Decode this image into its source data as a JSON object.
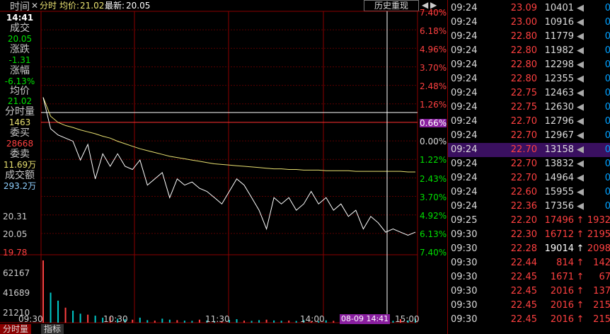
{
  "header": {
    "fenshi_label": "分时",
    "avg_label": "均价:",
    "avg_value": "21.02",
    "latest_label": "最新:",
    "latest_value": "20.05",
    "history_button": "历史重现"
  },
  "info": {
    "time_label": "时间",
    "time_value": "14:41",
    "deal_label": "成交",
    "deal_value": "20.05",
    "change_label": "涨跌",
    "change_value": "-1.31",
    "pct_label": "涨幅",
    "pct_value": "-6.13%",
    "avg_label": "均价",
    "avg_value": "21.02",
    "vol_label": "分时量",
    "vol_value": "1463",
    "bid_label": "委买",
    "bid_value": "28668",
    "ask_label": "委卖",
    "ask_value": "11.69万",
    "amount_label": "成交额",
    "amount_value": "293.2万"
  },
  "price_axis": [
    "20.31",
    "20.05",
    "19.78"
  ],
  "volume_axis": [
    "62167",
    "41689",
    "21210"
  ],
  "pct_axis": [
    "7.40%",
    "6.18%",
    "4.96%",
    "3.70%",
    "2.48%",
    "1.26%",
    "0.66%",
    "0.00%",
    "1.22%",
    "2.43%",
    "3.70%",
    "4.92%",
    "6.13%",
    "7.40%"
  ],
  "time_axis": [
    "09:30",
    "10:30",
    "11:30",
    "14:00",
    "15:00"
  ],
  "cursor_time": "08-09 14:41",
  "tabs": [
    "分时量",
    "指标"
  ],
  "colors": {
    "up": "#ff4040",
    "down": "#00e000",
    "price_line": "#ffffff",
    "avg_line": "#e8e070",
    "cursor": "#ffffff",
    "highlight": "#3a1060"
  },
  "trades": [
    {
      "time": "09:24",
      "price": "23.09",
      "vol": "10401",
      "arrow": "◀",
      "cnt": "0"
    },
    {
      "time": "09:24",
      "price": "23.00",
      "vol": "10916",
      "arrow": "◀",
      "cnt": "0"
    },
    {
      "time": "09:24",
      "price": "22.80",
      "vol": "11779",
      "arrow": "◀",
      "cnt": "0"
    },
    {
      "time": "09:24",
      "price": "22.80",
      "vol": "11982",
      "arrow": "◀",
      "cnt": "0"
    },
    {
      "time": "09:24",
      "price": "22.80",
      "vol": "12298",
      "arrow": "◀",
      "cnt": "0"
    },
    {
      "time": "09:24",
      "price": "22.80",
      "vol": "12355",
      "arrow": "◀",
      "cnt": "0"
    },
    {
      "time": "09:24",
      "price": "22.75",
      "vol": "12463",
      "arrow": "◀",
      "cnt": "0"
    },
    {
      "time": "09:24",
      "price": "22.75",
      "vol": "12630",
      "arrow": "◀",
      "cnt": "0"
    },
    {
      "time": "09:24",
      "price": "22.70",
      "vol": "12796",
      "arrow": "◀",
      "cnt": "0"
    },
    {
      "time": "09:24",
      "price": "22.70",
      "vol": "12967",
      "arrow": "◀",
      "cnt": "0"
    },
    {
      "time": "09:24",
      "price": "22.70",
      "vol": "13158",
      "arrow": "◀",
      "cnt": "0",
      "selected": true
    },
    {
      "time": "09:24",
      "price": "22.70",
      "vol": "13832",
      "arrow": "◀",
      "cnt": "0"
    },
    {
      "time": "09:24",
      "price": "22.70",
      "vol": "14964",
      "arrow": "◀",
      "cnt": "0"
    },
    {
      "time": "09:24",
      "price": "22.60",
      "vol": "15955",
      "arrow": "◀",
      "cnt": "0"
    },
    {
      "time": "09:24",
      "price": "22.36",
      "vol": "17356",
      "arrow": "◀",
      "cnt": "0"
    },
    {
      "time": "09:25",
      "price": "22.20",
      "vol": "17496",
      "arrow": "↑",
      "cnt": "1932",
      "dir": "up"
    },
    {
      "time": "09:30",
      "price": "22.30",
      "vol": "16712",
      "arrow": "↑",
      "cnt": "2195",
      "dir": "up"
    },
    {
      "time": "09:30",
      "price": "22.28",
      "vol": "19014",
      "arrow": "↑",
      "cnt": "2098",
      "dir": "up",
      "white": true
    },
    {
      "time": "09:30",
      "price": "22.44",
      "vol": "814",
      "arrow": "↑",
      "cnt": "142",
      "dir": "up"
    },
    {
      "time": "09:30",
      "price": "22.45",
      "vol": "1671",
      "arrow": "↑",
      "cnt": "67",
      "dir": "up"
    },
    {
      "time": "09:30",
      "price": "22.45",
      "vol": "2016",
      "arrow": "↑",
      "cnt": "137",
      "dir": "up"
    },
    {
      "time": "09:30",
      "price": "22.45",
      "vol": "2016",
      "arrow": "↑",
      "cnt": "215",
      "dir": "up"
    },
    {
      "time": "09:30",
      "price": "22.45",
      "vol": "2016",
      "arrow": "↑",
      "cnt": "215",
      "dir": "up"
    }
  ],
  "chart_data": {
    "type": "line",
    "price": [
      22.2,
      21.7,
      21.6,
      21.55,
      21.5,
      21.2,
      21.45,
      20.9,
      21.3,
      21.1,
      21.3,
      21.1,
      21.05,
      21.2,
      20.8,
      20.9,
      21.0,
      20.6,
      20.9,
      20.8,
      20.85,
      20.75,
      20.7,
      20.6,
      20.5,
      20.7,
      20.9,
      20.8,
      20.6,
      20.4,
      20.1,
      20.6,
      20.5,
      20.6,
      20.4,
      20.5,
      20.7,
      20.5,
      20.6,
      20.4,
      20.5,
      20.3,
      20.4,
      20.1,
      20.3,
      20.2,
      20.05,
      20.1,
      20.05,
      20.0,
      20.05
    ],
    "avg": [
      22.2,
      21.9,
      21.8,
      21.75,
      21.72,
      21.68,
      21.65,
      21.62,
      21.58,
      21.55,
      21.5,
      21.46,
      21.42,
      21.38,
      21.35,
      21.32,
      21.29,
      21.26,
      21.24,
      21.22,
      21.2,
      21.18,
      21.16,
      21.14,
      21.13,
      21.12,
      21.11,
      21.1,
      21.09,
      21.08,
      21.07,
      21.06,
      21.06,
      21.05,
      21.05,
      21.04,
      21.04,
      21.04,
      21.03,
      21.03,
      21.03,
      21.03,
      21.02,
      21.02,
      21.02,
      21.02,
      21.02,
      21.02,
      21.02,
      21.01,
      21.01
    ],
    "prev_close": 21.36,
    "volume": [
      62167,
      30000,
      22000,
      15000,
      12000,
      9000,
      8000,
      7000,
      5000,
      6000,
      4000,
      3500,
      3000,
      5000,
      2500,
      2000,
      4000,
      3000,
      2500,
      2000,
      1800,
      3000,
      2200,
      1600,
      1500,
      2800,
      3500,
      2000,
      1800,
      2500,
      3000,
      2200,
      1900,
      2100,
      1700,
      2600,
      1500,
      1400,
      2300,
      1800,
      1600,
      2000,
      1500,
      1700,
      1463,
      1900,
      2500,
      1800,
      3500,
      2200,
      4000
    ],
    "ylim": [
      19.78,
      22.94
    ]
  }
}
